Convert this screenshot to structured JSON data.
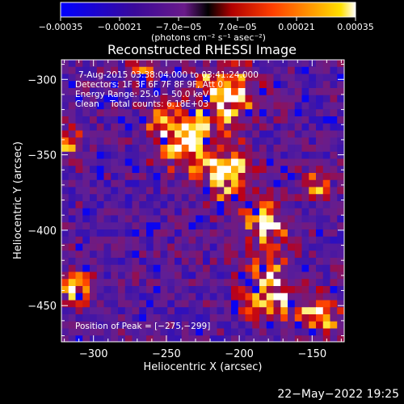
{
  "chart_data": {
    "type": "heatmap",
    "title": "Reconstructed RHESSI Image",
    "xlabel": "Heliocentric X (arcsec)",
    "ylabel": "Heliocentric Y (arcsec)",
    "xlim": [
      -322,
      -128
    ],
    "ylim": [
      -474,
      -287
    ],
    "x_ticks": [
      -300,
      -250,
      -200,
      -150
    ],
    "x_tick_labels": [
      "−300",
      "−250",
      "−200",
      "−150"
    ],
    "y_ticks": [
      -300,
      -350,
      -400,
      -450
    ],
    "y_tick_labels": [
      "−300",
      "−350",
      "−400",
      "−450"
    ],
    "colorbar": {
      "range": [
        -0.00035,
        0.00035
      ],
      "ticks": [
        -0.00035,
        -0.00021,
        -7e-05,
        7e-05,
        0.00021,
        0.00035
      ],
      "tick_labels": [
        "−0.00035",
        "−0.00021",
        "−7.0e−05",
        "7.0e−05",
        "0.00021",
        "0.00035"
      ],
      "unit_label": "(photons cm⁻² s⁻¹ asec⁻²)",
      "colors": [
        "#0000ff",
        "#4b0082",
        "#8a1a8a",
        "#cc0000",
        "#ff4500",
        "#ff8c00",
        "#ffd000",
        "#ffffff"
      ]
    },
    "annotations": {
      "line1": "7-Aug-2015 03:38:04.000 to 03:41:24.000",
      "line2": "Detectors: 1F 3F 6F 7F 8F 9F, Att 0",
      "line3": "Energy Range: 25.0 − 50.0 keV",
      "line4": "Clean    Total counts: 6.18E+03",
      "peak": "Position of Peak = [−275,−299]"
    },
    "peak_position": [
      -275,
      -299
    ],
    "grid": false
  },
  "footer": {
    "date": "22−May−2022 19:25"
  }
}
